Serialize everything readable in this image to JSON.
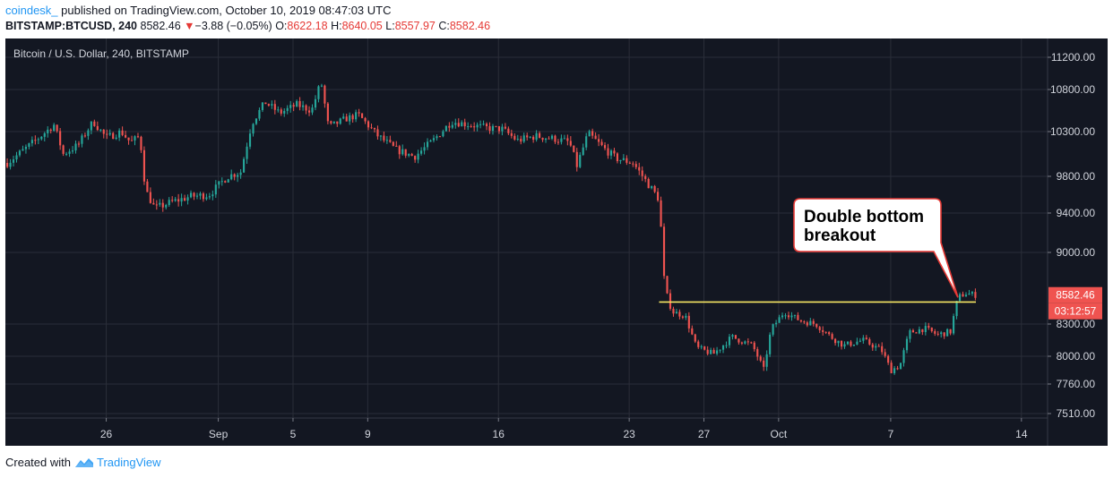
{
  "header": {
    "author": "coindesk_",
    "published_text": "published on TradingView.com, October 10, 2019 08:47:03 UTC",
    "symbol": "BITSTAMP:BTCUSD, 240",
    "last": "8582.46",
    "change_arrow": "▼",
    "change": "−3.88 (−0.05%)",
    "o_label": "O:",
    "o_value": "8622.18",
    "h_label": "H:",
    "h_value": "8640.05",
    "l_label": "L:",
    "l_value": "8557.97",
    "c_label": "C:",
    "c_value": "8582.46"
  },
  "footer": {
    "created_with": "Created with",
    "brand": "TradingView"
  },
  "colors": {
    "background": "#131722",
    "up": "#26a69a",
    "down": "#ef5350",
    "level_line": "#f5e663",
    "price_tag": "#ef5350",
    "grid": "#2a2e39"
  },
  "chart_data": {
    "type": "candlestick",
    "title": "Bitcoin / U.S. Dollar, 240, BITSTAMP",
    "y_ticks": [
      "11200.00",
      "10800.00",
      "10300.00",
      "9800.00",
      "9400.00",
      "9000.00",
      "8300.00",
      "8000.00",
      "7760.00",
      "7510.00"
    ],
    "y_tick_values": [
      11200,
      10800,
      10300,
      9800,
      9400,
      9000,
      8300,
      8000,
      7760,
      7510
    ],
    "x_ticks": [
      "26",
      "Sep",
      "5",
      "9",
      "16",
      "23",
      "27",
      "Oct",
      "7",
      "14"
    ],
    "x_tick_days": [
      26,
      32,
      36,
      40,
      47,
      54,
      58,
      62,
      68,
      75
    ],
    "x_axis_note": "day index: Aug 1 = 1, Sep 1 = 32, Oct 1 = 62",
    "x_range": [
      20.6,
      76.4
    ],
    "y_range": [
      7480,
      11320
    ],
    "price_scale": "piecewise (axis labels not evenly spaced)",
    "series_up_color": "up",
    "series_down_color": "down",
    "anchors": [
      {
        "day": 20.7,
        "price": 9950
      },
      {
        "day": 21.5,
        "price": 10080
      },
      {
        "day": 22.5,
        "price": 10250
      },
      {
        "day": 23.2,
        "price": 10380
      },
      {
        "day": 23.7,
        "price": 10050
      },
      {
        "day": 24.5,
        "price": 10150
      },
      {
        "day": 25.3,
        "price": 10420
      },
      {
        "day": 26.0,
        "price": 10230
      },
      {
        "day": 26.8,
        "price": 10300
      },
      {
        "day": 27.3,
        "price": 10180
      },
      {
        "day": 27.8,
        "price": 10250
      },
      {
        "day": 28.1,
        "price": 9650
      },
      {
        "day": 28.6,
        "price": 9450
      },
      {
        "day": 29.5,
        "price": 9520
      },
      {
        "day": 30.5,
        "price": 9580
      },
      {
        "day": 31.5,
        "price": 9600
      },
      {
        "day": 32.5,
        "price": 9800
      },
      {
        "day": 33.2,
        "price": 9850
      },
      {
        "day": 33.8,
        "price": 10400
      },
      {
        "day": 34.5,
        "price": 10650
      },
      {
        "day": 35.3,
        "price": 10520
      },
      {
        "day": 36.2,
        "price": 10620
      },
      {
        "day": 37.0,
        "price": 10550
      },
      {
        "day": 37.5,
        "price": 10900
      },
      {
        "day": 37.9,
        "price": 10350
      },
      {
        "day": 38.8,
        "price": 10450
      },
      {
        "day": 39.5,
        "price": 10500
      },
      {
        "day": 40.5,
        "price": 10260
      },
      {
        "day": 41.5,
        "price": 10100
      },
      {
        "day": 42.5,
        "price": 10020
      },
      {
        "day": 43.5,
        "price": 10200
      },
      {
        "day": 44.5,
        "price": 10420
      },
      {
        "day": 45.5,
        "price": 10380
      },
      {
        "day": 46.5,
        "price": 10340
      },
      {
        "day": 47.2,
        "price": 10330
      },
      {
        "day": 48.0,
        "price": 10200
      },
      {
        "day": 49.0,
        "price": 10250
      },
      {
        "day": 50.0,
        "price": 10220
      },
      {
        "day": 50.8,
        "price": 10180
      },
      {
        "day": 51.2,
        "price": 9920
      },
      {
        "day": 51.8,
        "price": 10280
      },
      {
        "day": 52.6,
        "price": 10120
      },
      {
        "day": 53.3,
        "price": 10000
      },
      {
        "day": 54.2,
        "price": 9950
      },
      {
        "day": 55.0,
        "price": 9720
      },
      {
        "day": 55.6,
        "price": 9550
      },
      {
        "day": 55.9,
        "price": 8650
      },
      {
        "day": 56.3,
        "price": 8420
      },
      {
        "day": 57.0,
        "price": 8380
      },
      {
        "day": 57.6,
        "price": 8080
      },
      {
        "day": 58.5,
        "price": 8020
      },
      {
        "day": 59.5,
        "price": 8180
      },
      {
        "day": 60.6,
        "price": 8100
      },
      {
        "day": 61.2,
        "price": 7880
      },
      {
        "day": 61.6,
        "price": 8250
      },
      {
        "day": 62.3,
        "price": 8420
      },
      {
        "day": 63.2,
        "price": 8330
      },
      {
        "day": 64.0,
        "price": 8300
      },
      {
        "day": 64.8,
        "price": 8180
      },
      {
        "day": 65.5,
        "price": 8100
      },
      {
        "day": 66.5,
        "price": 8150
      },
      {
        "day": 67.5,
        "price": 8060
      },
      {
        "day": 68.0,
        "price": 7880
      },
      {
        "day": 68.5,
        "price": 7920
      },
      {
        "day": 69.0,
        "price": 8220
      },
      {
        "day": 69.8,
        "price": 8260
      },
      {
        "day": 70.5,
        "price": 8200
      },
      {
        "day": 71.2,
        "price": 8230
      },
      {
        "day": 71.6,
        "price": 8560
      },
      {
        "day": 72.0,
        "price": 8600
      },
      {
        "day": 72.6,
        "price": 8582
      }
    ],
    "breakout_level": 8515,
    "annotation": "Double bottom\nbreakout",
    "last_price_label": "8582.46",
    "countdown_label": "03:12:57"
  }
}
